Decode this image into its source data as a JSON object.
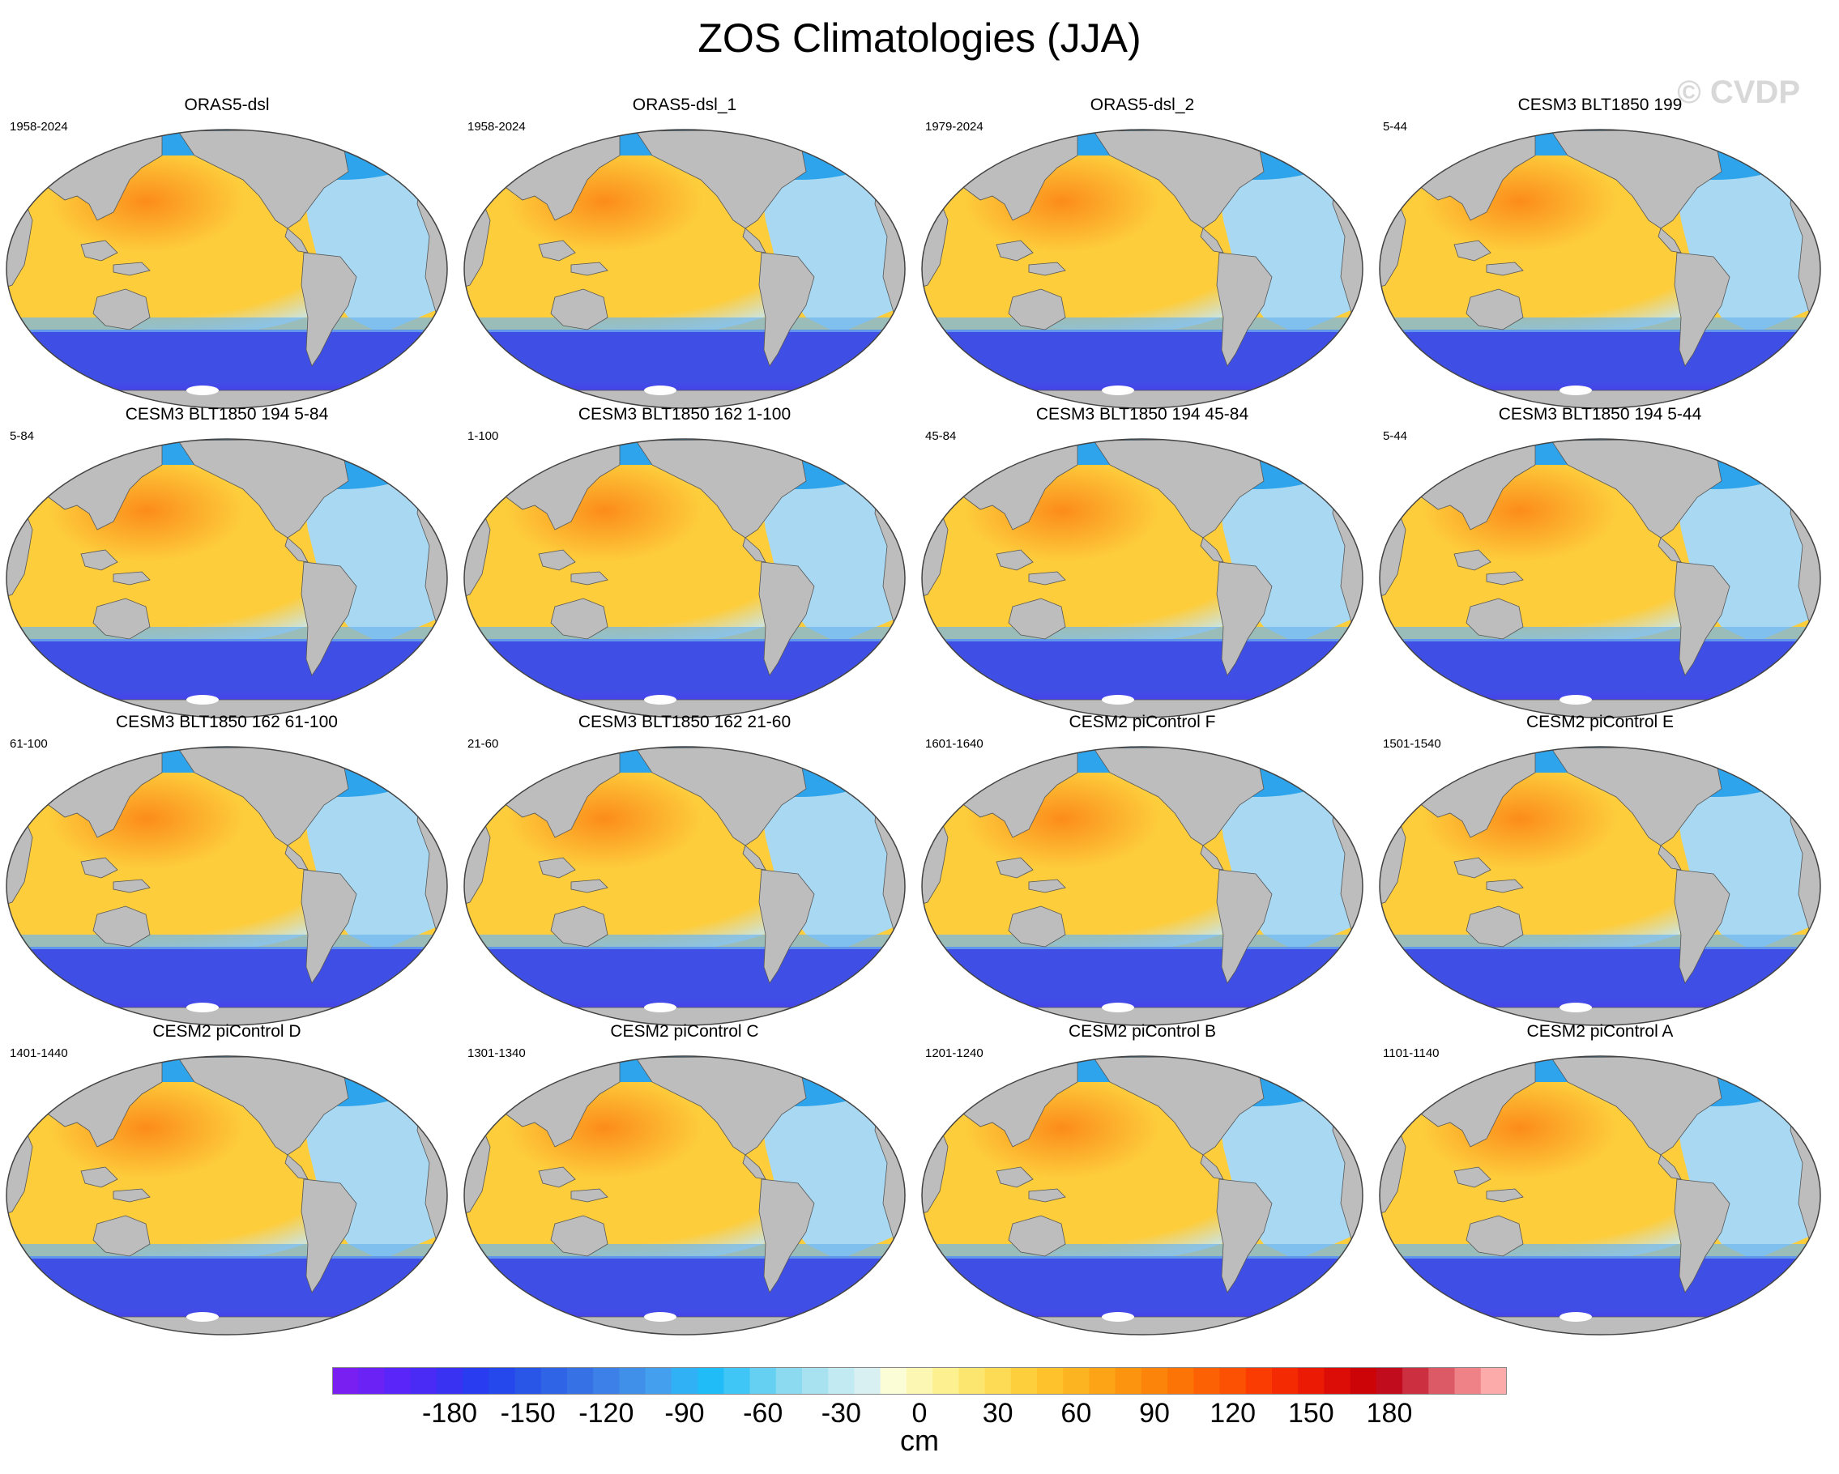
{
  "title": "ZOS Climatologies (JJA)",
  "watermark": "© CVDP",
  "panels": [
    {
      "title": "ORAS5-dsl",
      "years": "1958-2024"
    },
    {
      "title": "ORAS5-dsl_1",
      "years": "1958-2024"
    },
    {
      "title": "ORAS5-dsl_2",
      "years": "1979-2024"
    },
    {
      "title": "CESM3 BLT1850 199",
      "years": "5-44"
    },
    {
      "title": "CESM3 BLT1850 194 5-84",
      "years": "5-84"
    },
    {
      "title": "CESM3 BLT1850 162 1-100",
      "years": "1-100"
    },
    {
      "title": "CESM3 BLT1850 194 45-84",
      "years": "45-84"
    },
    {
      "title": "CESM3 BLT1850 194 5-44",
      "years": "5-44"
    },
    {
      "title": "CESM3 BLT1850 162 61-100",
      "years": "61-100"
    },
    {
      "title": "CESM3 BLT1850 162 21-60",
      "years": "21-60"
    },
    {
      "title": "CESM2 piControl F",
      "years": "1601-1640"
    },
    {
      "title": "CESM2 piControl E",
      "years": "1501-1540"
    },
    {
      "title": "CESM2 piControl D",
      "years": "1401-1440"
    },
    {
      "title": "CESM2 piControl C",
      "years": "1301-1340"
    },
    {
      "title": "CESM2 piControl B",
      "years": "1201-1240"
    },
    {
      "title": "CESM2 piControl A",
      "years": "1101-1140"
    }
  ],
  "colorbar": {
    "unit": "cm",
    "tick_labels": [
      "-180",
      "-150",
      "-120",
      "-90",
      "-60",
      "-30",
      "0",
      "30",
      "60",
      "90",
      "120",
      "150",
      "180"
    ],
    "colors": [
      "#7a1ff2",
      "#6a22f5",
      "#5a25f8",
      "#4a2af5",
      "#3a32f2",
      "#2a3cef",
      "#2448ec",
      "#2a56e8",
      "#3064e6",
      "#3672e6",
      "#3c80e8",
      "#4090ea",
      "#44a0ee",
      "#30b0f5",
      "#20bcf8",
      "#40c6f6",
      "#66d0f2",
      "#8cdaf0",
      "#a8e2f0",
      "#c2eaf2",
      "#d8f0f2",
      "#fbfdd6",
      "#fcf8b4",
      "#fcf090",
      "#fde670",
      "#fddb54",
      "#fdcf3c",
      "#fdc22c",
      "#fcb420",
      "#fca416",
      "#fc9410",
      "#fc840a",
      "#fc7406",
      "#fc6204",
      "#fc5002",
      "#fa3c02",
      "#f42a02",
      "#ea1a04",
      "#dc0c06",
      "#cc0408",
      "#c00c1c",
      "#cc3040",
      "#dc5a66",
      "#ee8286",
      "#fcaaaa"
    ]
  },
  "map_colors": {
    "land": "#bdbdbd",
    "ocean_high": "#fc8c1a",
    "ocean_mid": "#fdcd3c",
    "ocean_low": "#c6e6f4",
    "atlantic": "#a8d8f2",
    "arctic": "#2ea4ec",
    "southern_ocean": "#3f4fe6",
    "antarctic_edge": "#5628ee"
  }
}
